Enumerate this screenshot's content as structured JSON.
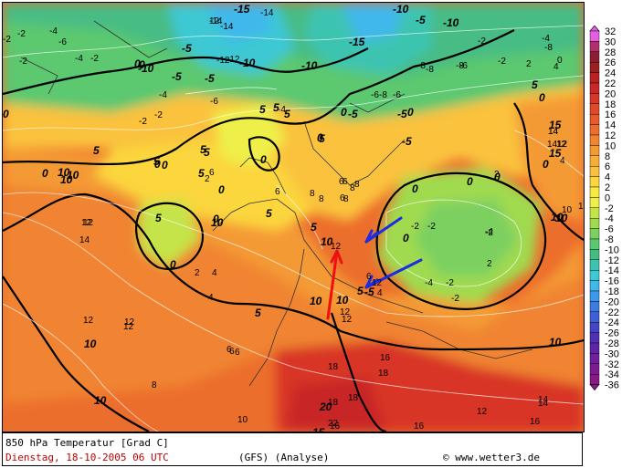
{
  "footer": {
    "title": "850 hPa Temperatur [Grad C]",
    "date": "Dienstag, 18-10-2005  06 UTC",
    "model": "(GFS)  (Analyse)",
    "copyright": "© www.wetter3.de"
  },
  "legend": {
    "levels": [
      32,
      30,
      28,
      26,
      24,
      22,
      20,
      18,
      16,
      14,
      12,
      10,
      8,
      6,
      4,
      2,
      0,
      -2,
      -4,
      -6,
      -8,
      -10,
      -12,
      -14,
      -16,
      -18,
      -20,
      -22,
      -24,
      -26,
      -28,
      -30,
      -32,
      -34,
      -36
    ],
    "colors": [
      "#e060e0",
      "#b0306c",
      "#8c1e34",
      "#9c2020",
      "#b82222",
      "#c82828",
      "#d83628",
      "#e0482a",
      "#e65a2c",
      "#ec6e2c",
      "#f08430",
      "#f49a34",
      "#f7ae38",
      "#fac23c",
      "#fbd63e",
      "#f8e840",
      "#eef048",
      "#c4e448",
      "#a0da50",
      "#7cd060",
      "#5cc870",
      "#46bc84",
      "#3cc4b0",
      "#3cc8d4",
      "#40b8ec",
      "#3c98e8",
      "#3c7ce0",
      "#3e60d4",
      "#4444c4",
      "#5030b4",
      "#6024a8",
      "#70209c",
      "#7c1c90",
      "#881884"
    ]
  },
  "map_labels": {
    "bold": [
      "-15",
      "-10",
      "-10",
      "-5",
      "-10",
      "-15",
      "-10",
      "-5",
      "-5",
      "-10",
      "0",
      "-5",
      "-5",
      "-5",
      "0",
      "0",
      "0",
      "0",
      "-5",
      "0",
      "0",
      "5",
      "5",
      "5",
      "5",
      "5",
      "5",
      "0",
      "0",
      "5",
      "5",
      "5",
      "10",
      "10",
      "10",
      "10",
      "10",
      "10",
      "10",
      "10",
      "10",
      "15",
      "15",
      "20",
      "5",
      "0",
      "0",
      "0",
      "0",
      "0",
      "0",
      "0",
      "5",
      "5",
      "-5",
      "5",
      "0",
      "0",
      "0",
      "5",
      "5",
      "15",
      "10",
      "10",
      "10"
    ],
    "thin": [
      "-14",
      "-14",
      "-14",
      "-2",
      "-4",
      "-6",
      "-2",
      "-2",
      "-8",
      "-8",
      "-12",
      "-12",
      "-6",
      "-8",
      "-8",
      "-6",
      "-4",
      "-2",
      "-2",
      "-2",
      "-4",
      "-6",
      "-4",
      "-2",
      "-4",
      "-6",
      "-8",
      "-2",
      "0",
      "2",
      "2",
      "4",
      "6",
      "6",
      "6",
      "6",
      "6",
      "8",
      "8",
      "8",
      "8",
      "12",
      "14",
      "14",
      "12",
      "12",
      "12",
      "16",
      "16",
      "16",
      "18",
      "18",
      "18",
      "18",
      "22",
      "14",
      "16",
      "14",
      "12",
      "12",
      "14",
      "10",
      "-2",
      "-2",
      "-2",
      "-4",
      "-4",
      "-2",
      "-2",
      "2",
      "4",
      "4",
      "6",
      "6",
      "8",
      "8",
      "10",
      "12",
      "12",
      "12",
      "12",
      "12",
      "6",
      "6",
      "4",
      "2",
      "2",
      "4",
      "12",
      "12",
      "14",
      "12"
    ]
  }
}
